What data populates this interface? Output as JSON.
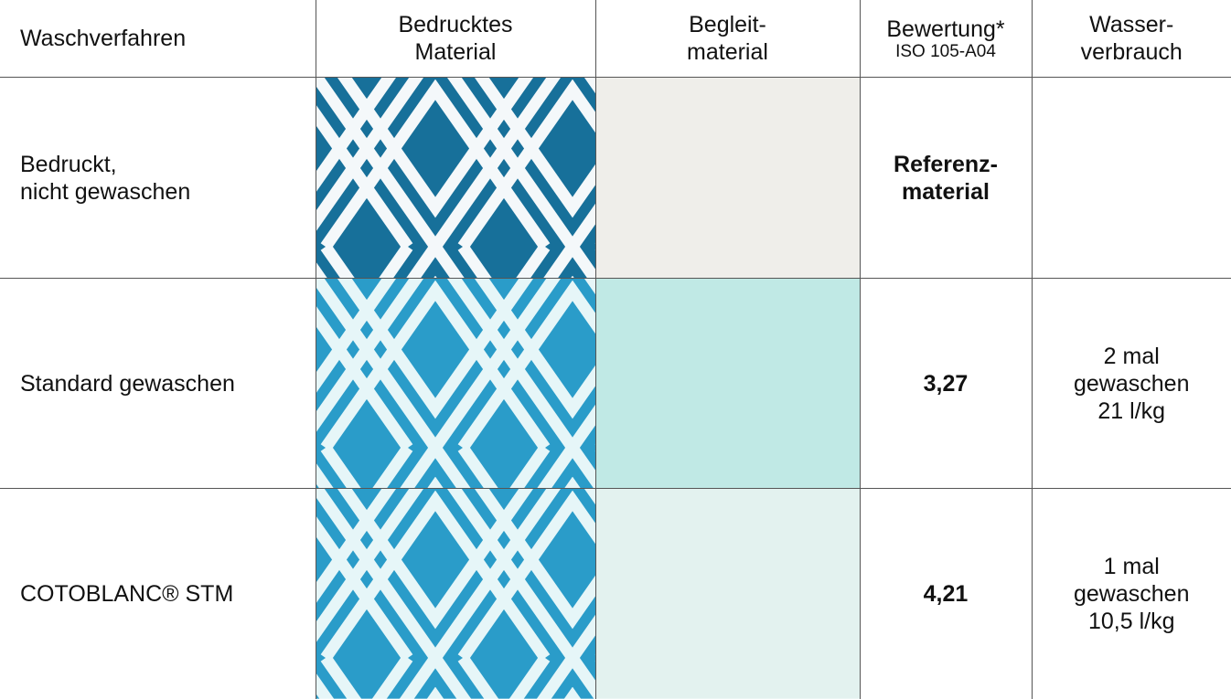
{
  "header": {
    "method": "Waschverfahren",
    "printed": "Bedrucktes\nMaterial",
    "companion": "Begleit-\nmaterial",
    "rating": "Bewertung*",
    "rating_standard": "ISO 105-A04",
    "water": "Wasser-\nverbrauch"
  },
  "rows": [
    {
      "method": "Bedruckt,\nnicht gewaschen",
      "rating": "Referenz-\nmaterial",
      "water": null
    },
    {
      "method": "Standard gewaschen",
      "rating": "3,27",
      "water": "2 mal\ngewaschen\n21 l/kg"
    },
    {
      "method": "COTOBLANC® STM",
      "rating": "4,21",
      "water": "1 mal\ngewaschen\n10,5 l/kg"
    }
  ]
}
